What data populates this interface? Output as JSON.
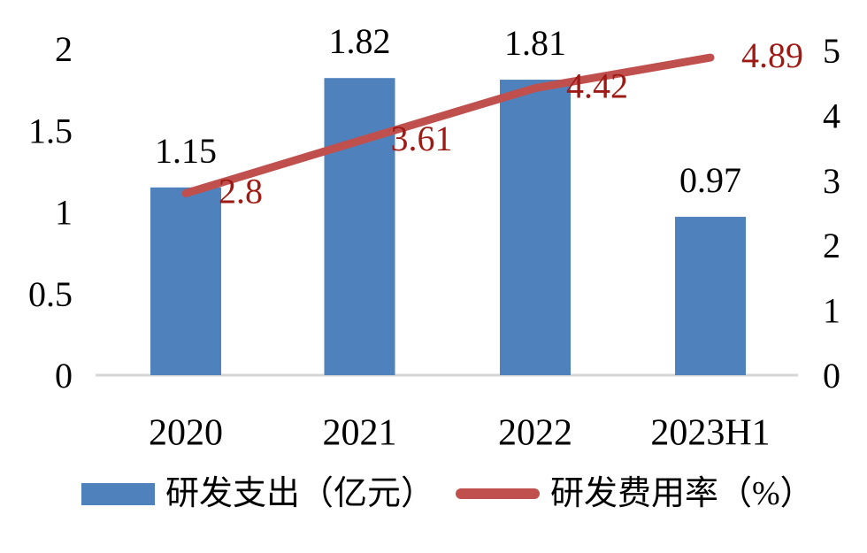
{
  "chart_data": {
    "type": "combo-bar-line",
    "title": "",
    "categories": [
      "2020",
      "2021",
      "2022",
      "2023H1"
    ],
    "series": [
      {
        "name": "研发支出（亿元）",
        "type": "bar",
        "axis": "left",
        "values": [
          1.15,
          1.82,
          1.81,
          0.97
        ],
        "labels": [
          "1.15",
          "1.82",
          "1.81",
          "0.97"
        ],
        "color": "#4F81BD",
        "label_color": "#000000"
      },
      {
        "name": "研发费用率（%）",
        "type": "line",
        "axis": "right",
        "values": [
          2.8,
          3.61,
          4.42,
          4.89
        ],
        "labels": [
          "2.8",
          "3.61",
          "4.42",
          "4.89"
        ],
        "color": "#C0504D",
        "label_color": "#9E1A15"
      }
    ],
    "left_axis": {
      "min": 0,
      "max": 2,
      "ticks": [
        "0",
        "0.5",
        "1",
        "1.5",
        "2"
      ],
      "tick_values": [
        0,
        0.5,
        1,
        1.5,
        2
      ]
    },
    "right_axis": {
      "min": 0,
      "max": 5,
      "ticks": [
        "0",
        "1",
        "2",
        "3",
        "4",
        "5"
      ],
      "tick_values": [
        0,
        1,
        2,
        3,
        4,
        5
      ]
    },
    "grid": false,
    "legend_position": "bottom",
    "axis_line_color": "#D6D6D6",
    "background_color": "#FFFFFF"
  }
}
